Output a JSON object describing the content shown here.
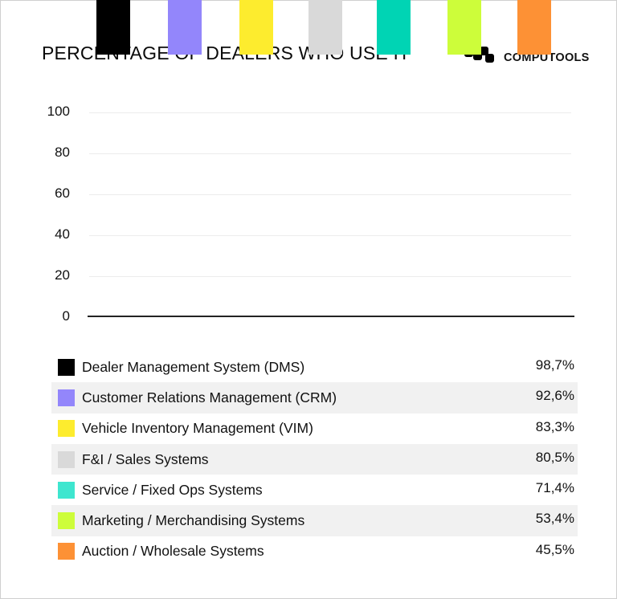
{
  "header": {
    "title": "PERCENTAGE OF DEALERS WHO USE IT",
    "brand": "COMPUTOOLS"
  },
  "chart_data": {
    "type": "bar",
    "title": "PERCENTAGE OF DEALERS WHO USE IT",
    "xlabel": "",
    "ylabel": "",
    "ylim": [
      0,
      100
    ],
    "yticks": [
      0,
      20,
      40,
      60,
      80,
      100
    ],
    "grid": true,
    "legend_position": "bottom",
    "categories": [
      "Dealer Management System (DMS)",
      "Customer Relations Management (CRM)",
      "Vehicle Inventory Management (VIM)",
      "F&I / Sales Systems",
      "Service / Fixed Ops Systems",
      "Marketing / Merchandising Systems",
      "Auction / Wholesale Systems"
    ],
    "values": [
      98.7,
      92.6,
      83.3,
      80.5,
      71.4,
      53.4,
      45.5
    ],
    "value_labels": [
      "98,7%",
      "92,6%",
      "83,3%",
      "80,5%",
      "71,4%",
      "53,4%",
      "45,5%"
    ],
    "colors": [
      "#000000",
      "#9386fb",
      "#fdec2e",
      "#d9d9d9",
      "#00d4b4",
      "#cdfd3a",
      "#fd9135"
    ]
  },
  "axis": {
    "ticks": [
      "100",
      "80",
      "60",
      "40",
      "20",
      "0"
    ]
  },
  "legend": {
    "items": [
      {
        "label": "Dealer Management System (DMS)",
        "value": "98,7%",
        "color": "#000000"
      },
      {
        "label": "Customer Relations Management (CRM)",
        "value": "92,6%",
        "color": "#9386fb"
      },
      {
        "label": "Vehicle Inventory Management (VIM)",
        "value": "83,3%",
        "color": "#fdec2e"
      },
      {
        "label": "F&I / Sales Systems",
        "value": "80,5%",
        "color": "#d9d9d9"
      },
      {
        "label": "Service / Fixed Ops Systems",
        "value": "71,4%",
        "color": "#3ee6cf"
      },
      {
        "label": "Marketing / Merchandising Systems",
        "value": "53,4%",
        "color": "#cdfd3a"
      },
      {
        "label": "Auction / Wholesale Systems",
        "value": "45,5%",
        "color": "#fd9135"
      }
    ]
  }
}
